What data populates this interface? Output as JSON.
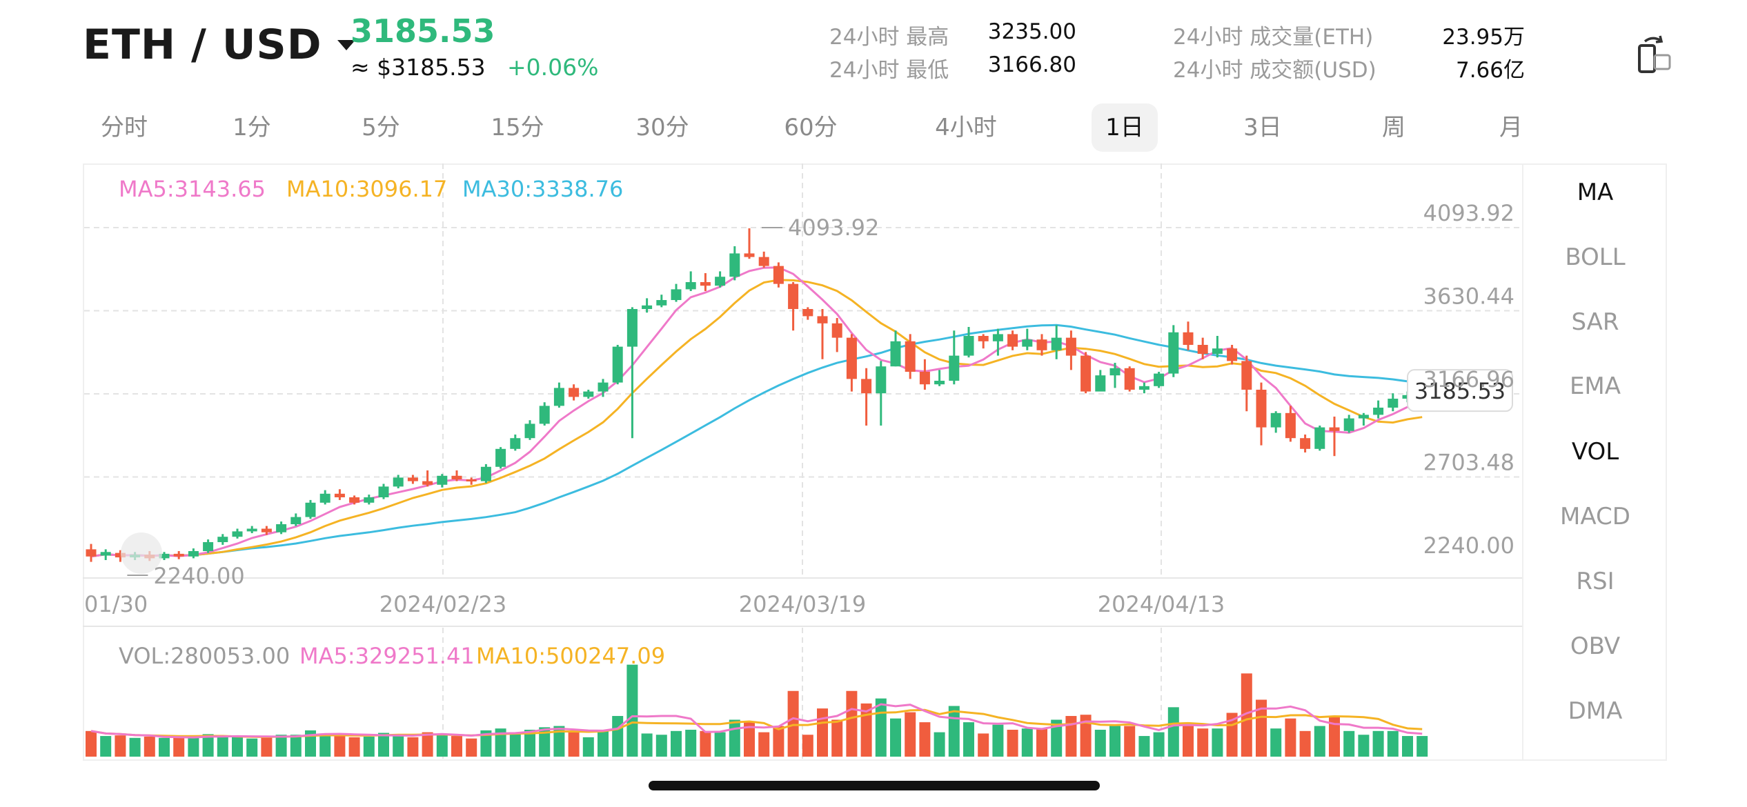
{
  "header": {
    "pair": "ETH  /  USD",
    "last_price": "3185.53",
    "price_approx": "≈ $3185.53",
    "change": "+0.06%",
    "stats": [
      {
        "label": "24小时 最高",
        "value": "3235.00"
      },
      {
        "label": "24小时 最低",
        "value": "3166.80"
      },
      {
        "label": "24小时 成交量(ETH)",
        "value": "23.95万"
      },
      {
        "label": "24小时 成交额(USD)",
        "value": "7.66亿"
      }
    ]
  },
  "tabs": [
    "分时",
    "1分",
    "5分",
    "15分",
    "30分",
    "60分",
    "4小时",
    "1日",
    "3日",
    "周",
    "月"
  ],
  "active_tab": "1日",
  "indicators": [
    "MA",
    "BOLL",
    "SAR",
    "EMA",
    "VOL",
    "MACD",
    "RSI",
    "OBV",
    "DMA"
  ],
  "active_indicators": [
    "MA",
    "VOL"
  ],
  "legend": {
    "ma5": "MA5:3143.65",
    "ma10": "MA10:3096.17",
    "ma30": "MA30:3338.76",
    "vol": "VOL:280053.00",
    "vol_ma5": "MA5:329251.41",
    "vol_ma10": "MA10:500247.09"
  },
  "colors": {
    "up": "#2fb97c",
    "down": "#f05d3e",
    "ma5": "#ef79c9",
    "ma10": "#f5b324",
    "ma30": "#3cbcdf",
    "grid": "#e3e3e3"
  },
  "chart_data": {
    "type": "candlestick",
    "y_ticks": [
      "4093.92",
      "3630.44",
      "3166.96",
      "2703.48",
      "2240.00"
    ],
    "ylim": [
      2240.0,
      4093.92
    ],
    "x_ticks": [
      "01/30",
      "2024/02/23",
      "2024/03/19",
      "2024/04/13"
    ],
    "high_marker": "4093.92",
    "low_marker": "2240.00",
    "current_price_label": "3185.53",
    "candles": [
      [
        2300,
        2260,
        2330,
        2230
      ],
      [
        2265,
        2285,
        2300,
        2240
      ],
      [
        2280,
        2255,
        2295,
        2230
      ],
      [
        2255,
        2270,
        2285,
        2240
      ],
      [
        2270,
        2250,
        2290,
        2235
      ],
      [
        2250,
        2275,
        2285,
        2240
      ],
      [
        2275,
        2260,
        2290,
        2245
      ],
      [
        2260,
        2290,
        2305,
        2250
      ],
      [
        2290,
        2340,
        2355,
        2280
      ],
      [
        2340,
        2370,
        2385,
        2325
      ],
      [
        2370,
        2400,
        2415,
        2360
      ],
      [
        2400,
        2415,
        2430,
        2390
      ],
      [
        2415,
        2395,
        2430,
        2380
      ],
      [
        2395,
        2440,
        2455,
        2385
      ],
      [
        2440,
        2480,
        2500,
        2430
      ],
      [
        2480,
        2560,
        2575,
        2470
      ],
      [
        2560,
        2610,
        2630,
        2550
      ],
      [
        2610,
        2590,
        2635,
        2575
      ],
      [
        2590,
        2560,
        2600,
        2550
      ],
      [
        2560,
        2590,
        2605,
        2550
      ],
      [
        2590,
        2650,
        2665,
        2580
      ],
      [
        2650,
        2700,
        2715,
        2640
      ],
      [
        2700,
        2680,
        2715,
        2665
      ],
      [
        2680,
        2660,
        2740,
        2650
      ],
      [
        2660,
        2710,
        2720,
        2645
      ],
      [
        2710,
        2690,
        2740,
        2680
      ],
      [
        2690,
        2680,
        2700,
        2660
      ],
      [
        2680,
        2760,
        2775,
        2670
      ],
      [
        2760,
        2860,
        2870,
        2750
      ],
      [
        2860,
        2920,
        2940,
        2850
      ],
      [
        2920,
        3000,
        3020,
        2910
      ],
      [
        3000,
        3100,
        3120,
        2990
      ],
      [
        3100,
        3200,
        3230,
        3090
      ],
      [
        3200,
        3150,
        3220,
        3130
      ],
      [
        3150,
        3180,
        3190,
        3140
      ],
      [
        3180,
        3230,
        3250,
        3150
      ],
      [
        3230,
        3430,
        3440,
        3220
      ],
      [
        3430,
        3640,
        3650,
        2920
      ],
      [
        3640,
        3660,
        3700,
        3620
      ],
      [
        3660,
        3690,
        3720,
        3650
      ],
      [
        3690,
        3750,
        3780,
        3680
      ],
      [
        3750,
        3790,
        3850,
        3740
      ],
      [
        3790,
        3770,
        3840,
        3740
      ],
      [
        3770,
        3820,
        3850,
        3760
      ],
      [
        3820,
        3950,
        3990,
        3800
      ],
      [
        3950,
        3930,
        4090,
        3920
      ],
      [
        3930,
        3880,
        3960,
        3870
      ],
      [
        3880,
        3780,
        3900,
        3760
      ],
      [
        3780,
        3640,
        3790,
        3520
      ],
      [
        3640,
        3600,
        3650,
        3580
      ],
      [
        3600,
        3560,
        3640,
        3360
      ],
      [
        3560,
        3480,
        3590,
        3400
      ],
      [
        3480,
        3250,
        3500,
        3180
      ],
      [
        3250,
        3170,
        3310,
        2990
      ],
      [
        3170,
        3320,
        3350,
        2990
      ],
      [
        3320,
        3460,
        3520,
        3320
      ],
      [
        3460,
        3290,
        3500,
        3250
      ],
      [
        3290,
        3220,
        3360,
        3190
      ],
      [
        3220,
        3240,
        3300,
        3210
      ],
      [
        3240,
        3380,
        3520,
        3220
      ],
      [
        3380,
        3490,
        3540,
        3370
      ],
      [
        3490,
        3460,
        3500,
        3420
      ],
      [
        3460,
        3500,
        3530,
        3380
      ],
      [
        3500,
        3430,
        3520,
        3410
      ],
      [
        3430,
        3470,
        3530,
        3410
      ],
      [
        3470,
        3410,
        3500,
        3380
      ],
      [
        3410,
        3480,
        3550,
        3360
      ],
      [
        3480,
        3380,
        3520,
        3300
      ],
      [
        3380,
        3180,
        3400,
        3170
      ],
      [
        3180,
        3270,
        3300,
        3190
      ],
      [
        3270,
        3310,
        3340,
        3200
      ],
      [
        3310,
        3190,
        3320,
        3180
      ],
      [
        3190,
        3210,
        3230,
        3170
      ],
      [
        3210,
        3280,
        3290,
        3200
      ],
      [
        3280,
        3510,
        3550,
        3260
      ],
      [
        3510,
        3440,
        3570,
        3410
      ],
      [
        3440,
        3390,
        3480,
        3360
      ],
      [
        3390,
        3420,
        3490,
        3370
      ],
      [
        3420,
        3350,
        3440,
        3330
      ],
      [
        3350,
        3190,
        3380,
        3070
      ],
      [
        3190,
        2980,
        3230,
        2880
      ],
      [
        2980,
        3060,
        3070,
        2950
      ],
      [
        3060,
        2920,
        3100,
        2900
      ],
      [
        2920,
        2860,
        2940,
        2840
      ],
      [
        2860,
        2980,
        2990,
        2850
      ],
      [
        2980,
        2960,
        3040,
        2820
      ],
      [
        2960,
        3030,
        3050,
        2950
      ],
      [
        3030,
        3050,
        3060,
        2990
      ],
      [
        3050,
        3090,
        3130,
        3030
      ],
      [
        3090,
        3140,
        3170,
        3070
      ],
      [
        3140,
        3160,
        3180,
        3120
      ],
      [
        3160,
        3185,
        3200,
        3140
      ]
    ]
  }
}
